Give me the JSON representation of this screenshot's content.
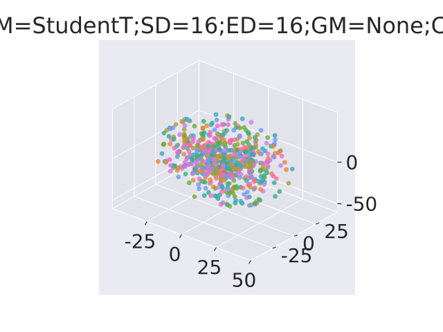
{
  "chart_data": {
    "type": "scatter",
    "title": "M=StudentT;SD=16;ED=16;GM=None;C",
    "xlabel": "",
    "ylabel": "",
    "zlabel": "",
    "x_ticks": [
      "-25",
      "0",
      "25",
      "50"
    ],
    "y_ticks": [
      "-25",
      "0",
      "25"
    ],
    "z_ticks": [
      "-50",
      "0"
    ],
    "xlim": [
      -50,
      50
    ],
    "ylim": [
      -50,
      50
    ],
    "zlim": [
      -60,
      60
    ],
    "grid": true,
    "legend": "none",
    "point_count": 640,
    "point_distribution": "roughly spherical cloud centered near origin, radius about 40",
    "colors": [
      "#f77189",
      "#e58a32",
      "#ae9d31",
      "#6eab31",
      "#33b07a",
      "#35ac9f",
      "#38a8c5",
      "#6e9af3",
      "#cc79f4",
      "#f565cc"
    ]
  },
  "style": {
    "figure_background": "#ffffff",
    "axes_background": "#eaeaf2",
    "pane_color": "#e3e3ec",
    "grid_color": "#ffffff",
    "text_color": "#262626",
    "marker_alpha": 0.8
  }
}
